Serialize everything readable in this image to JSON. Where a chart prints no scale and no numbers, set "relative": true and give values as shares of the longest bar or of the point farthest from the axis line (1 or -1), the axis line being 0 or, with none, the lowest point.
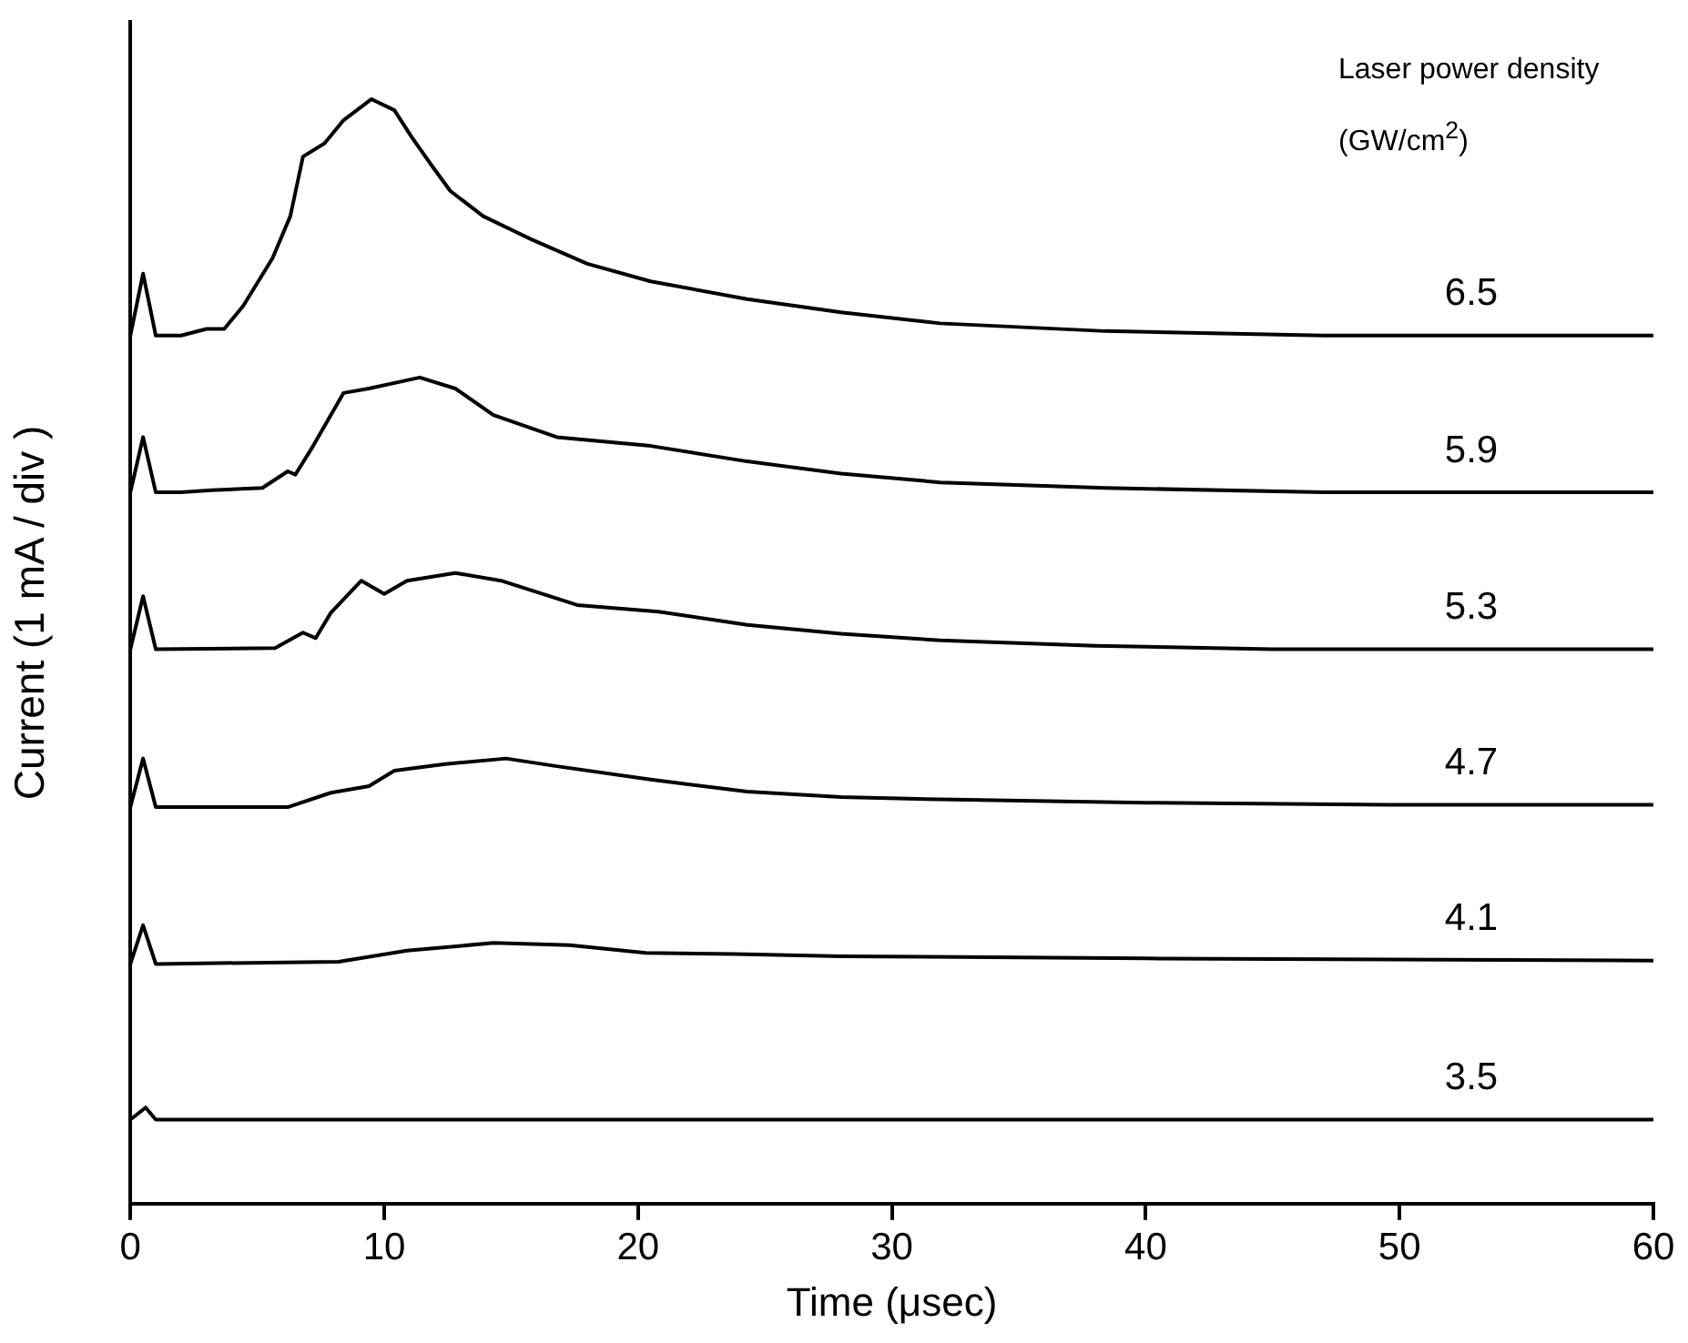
{
  "chart_data": {
    "type": "line",
    "relative": true,
    "xlabel": "Time (μsec)",
    "ylabel": "Current (1 mA / div )",
    "legend_title": "Laser power density (GW/cm$^{2}$)",
    "xlim": [
      0,
      60
    ],
    "xticks": [
      0,
      10,
      20,
      30,
      40,
      50,
      60
    ],
    "legend": false,
    "grid": false,
    "marker": "none",
    "line_style": "solid",
    "series": [
      {
        "name": "6.5",
        "color": "#000000",
        "x": [
          0,
          0.5,
          1,
          2,
          3,
          3.7,
          4.45,
          5.6,
          6.3,
          6.8,
          7.65,
          8.4,
          9.5,
          10.4,
          11.1,
          11.9,
          12.6,
          13.9,
          15.8,
          18,
          20.5,
          24.3,
          28,
          31.9,
          38.4,
          47,
          60
        ],
        "values": [
          0.786,
          0.842,
          0.786,
          0.786,
          0.792,
          0.792,
          0.813,
          0.856,
          0.894,
          0.948,
          0.96,
          0.981,
          1.0,
          0.99,
          0.965,
          0.939,
          0.917,
          0.894,
          0.873,
          0.851,
          0.835,
          0.819,
          0.807,
          0.797,
          0.79,
          0.786,
          0.786
        ]
      },
      {
        "name": "5.9",
        "color": "#000000",
        "x": [
          0,
          0.5,
          1,
          2,
          3.2,
          5.2,
          6.2,
          6.5,
          7.2,
          8.4,
          9.4,
          11.4,
          12.8,
          14.3,
          16.8,
          20.5,
          24.3,
          28,
          31.9,
          38.4,
          47,
          60
        ],
        "values": [
          0.644,
          0.694,
          0.644,
          0.644,
          0.646,
          0.648,
          0.663,
          0.66,
          0.686,
          0.734,
          0.738,
          0.748,
          0.738,
          0.714,
          0.694,
          0.686,
          0.672,
          0.661,
          0.653,
          0.648,
          0.644,
          0.644
        ]
      },
      {
        "name": "5.3",
        "color": "#000000",
        "x": [
          0,
          0.5,
          1,
          5.7,
          6.8,
          7.3,
          7.9,
          9.1,
          10,
          10.9,
          12.8,
          14.6,
          17.6,
          20.8,
          24.3,
          28,
          31.9,
          38,
          45,
          60
        ],
        "values": [
          0.502,
          0.55,
          0.502,
          0.503,
          0.517,
          0.512,
          0.535,
          0.564,
          0.552,
          0.564,
          0.571,
          0.564,
          0.542,
          0.536,
          0.524,
          0.516,
          0.51,
          0.505,
          0.502,
          0.502
        ]
      },
      {
        "name": "4.7",
        "color": "#000000",
        "x": [
          0,
          0.5,
          1,
          6.2,
          7.9,
          9.4,
          10.4,
          12.4,
          14.8,
          16.8,
          20.5,
          24.3,
          28,
          31.9,
          40,
          50,
          60
        ],
        "values": [
          0.359,
          0.403,
          0.359,
          0.359,
          0.372,
          0.378,
          0.392,
          0.398,
          0.403,
          0.396,
          0.384,
          0.373,
          0.368,
          0.366,
          0.363,
          0.361,
          0.361
        ]
      },
      {
        "name": "4.1",
        "color": "#000000",
        "x": [
          0,
          0.5,
          1,
          8.2,
          10.9,
          14.3,
          17.3,
          20.3,
          23.8,
          28,
          40,
          60
        ],
        "values": [
          0.217,
          0.252,
          0.217,
          0.219,
          0.229,
          0.236,
          0.234,
          0.227,
          0.226,
          0.224,
          0.222,
          0.22
        ]
      },
      {
        "name": "3.5",
        "color": "#000000",
        "x": [
          0,
          0.6,
          1,
          60
        ],
        "values": [
          0.076,
          0.087,
          0.076,
          0.076
        ]
      }
    ]
  }
}
